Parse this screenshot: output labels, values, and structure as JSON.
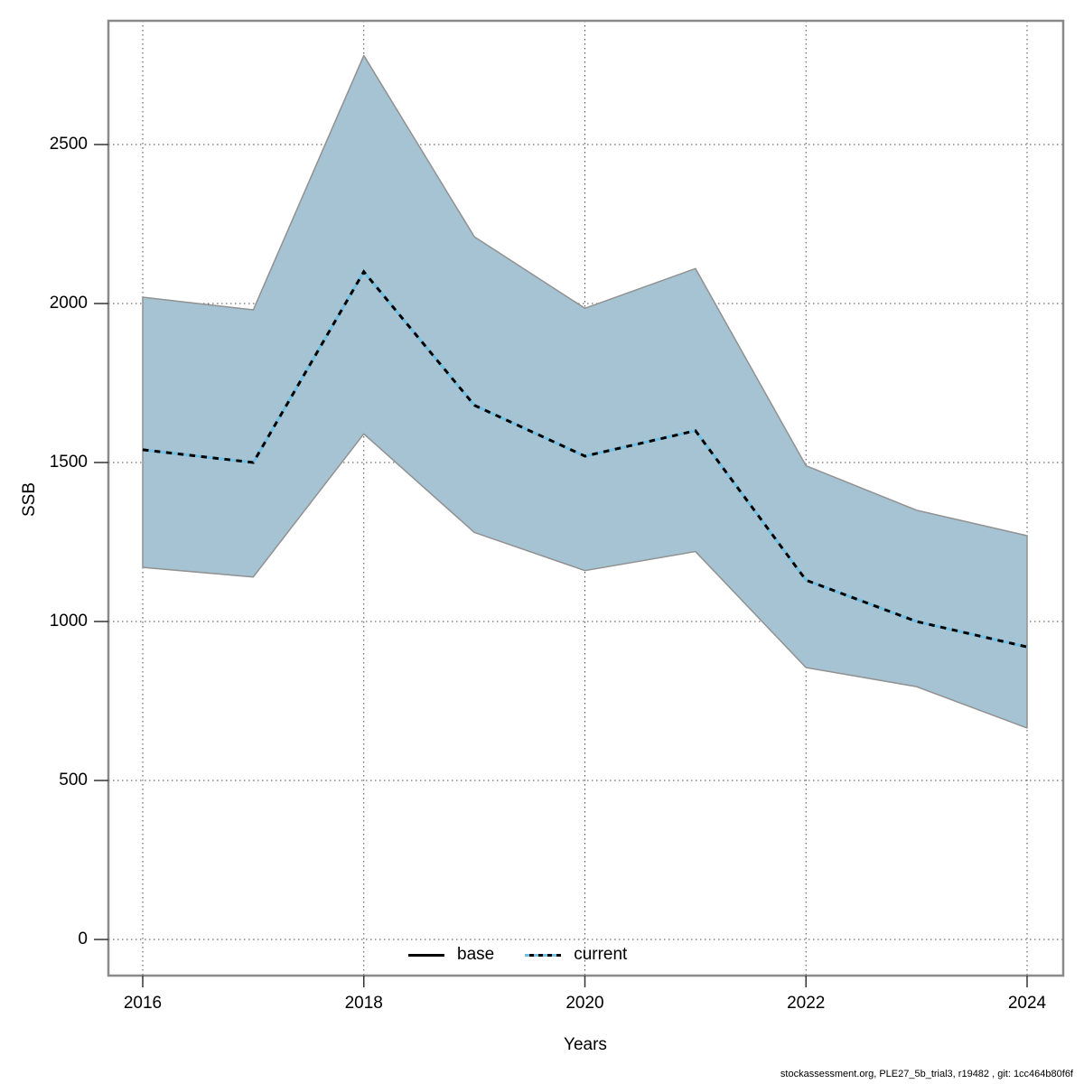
{
  "footer": {
    "text": "stockassessment.org, PLE27_5b_trial3, r19482 , git: 1cc464b80f6f"
  },
  "legend": {
    "items": [
      {
        "label": "base",
        "style": "solid",
        "color": "#000000"
      },
      {
        "label": "current",
        "style": "dotted",
        "color": "#70c1e4"
      }
    ]
  },
  "chart_data": {
    "type": "line",
    "title": "",
    "xlabel": "Years",
    "ylabel": "SSB",
    "grid": true,
    "legend_position": "bottom-center",
    "x": [
      2016,
      2017,
      2018,
      2019,
      2020,
      2021,
      2022,
      2023,
      2024
    ],
    "x_ticks": [
      "2016",
      "2018",
      "2020",
      "2022",
      "2024"
    ],
    "x_tick_values": [
      2016,
      2018,
      2020,
      2022,
      2024
    ],
    "y_ticks": [
      "0",
      "500",
      "1000",
      "1500",
      "2000",
      "2500"
    ],
    "y_tick_values": [
      0,
      500,
      1000,
      1500,
      2000,
      2500
    ],
    "xlim": [
      2015.7,
      2024.3
    ],
    "ylim": [
      -110,
      2890
    ],
    "series": [
      {
        "name": "base",
        "line": "solid",
        "color": "#000000",
        "values": [
          1540,
          1500,
          2100,
          1680,
          1520,
          1600,
          1130,
          1000,
          920
        ]
      },
      {
        "name": "current",
        "line": "dotted",
        "color": "#70c1e4",
        "values": [
          1540,
          1500,
          2100,
          1680,
          1520,
          1600,
          1130,
          1000,
          920
        ]
      }
    ],
    "confidence_band": {
      "fill": "#a5c3d3",
      "edge": "#919191",
      "upper": [
        2020,
        1980,
        2780,
        2210,
        1985,
        2110,
        1490,
        1350,
        1270
      ],
      "lower": [
        1170,
        1140,
        1590,
        1280,
        1160,
        1220,
        855,
        795,
        665
      ]
    },
    "colors": {
      "grid": "#4a4a4a",
      "box": "#898989",
      "tick": "#333333",
      "text": "#000000"
    }
  }
}
